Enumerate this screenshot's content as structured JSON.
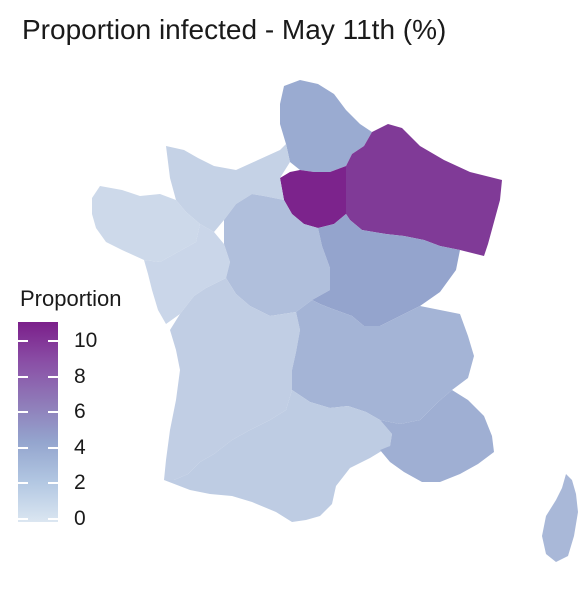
{
  "title": "Proportion infected - May 11th (%)",
  "legend": {
    "title": "Proportion",
    "ticks": [
      "10",
      "8",
      "6",
      "4",
      "2",
      "0"
    ],
    "min": 0,
    "max": 11,
    "colors": {
      "low": "#dbe6f1",
      "mid": "#94a5ce",
      "high": "#7b1f8a"
    }
  },
  "regions": [
    {
      "name": "Hauts-de-France",
      "value": 4.5
    },
    {
      "name": "Île-de-France",
      "value": 10.8
    },
    {
      "name": "Grand Est",
      "value": 9.8
    },
    {
      "name": "Normandie",
      "value": 1.5
    },
    {
      "name": "Bretagne",
      "value": 1.0
    },
    {
      "name": "Pays de la Loire",
      "value": 1.2
    },
    {
      "name": "Centre-Val de Loire",
      "value": 3.0
    },
    {
      "name": "Bourgogne-Franche-Comté",
      "value": 5.0
    },
    {
      "name": "Nouvelle-Aquitaine",
      "value": 1.8
    },
    {
      "name": "Auvergne-Rhône-Alpes",
      "value": 3.8
    },
    {
      "name": "Occitanie",
      "value": 2.0
    },
    {
      "name": "Provence-Alpes-Côte d'Azur",
      "value": 4.2
    },
    {
      "name": "Corse",
      "value": 3.5
    }
  ]
}
